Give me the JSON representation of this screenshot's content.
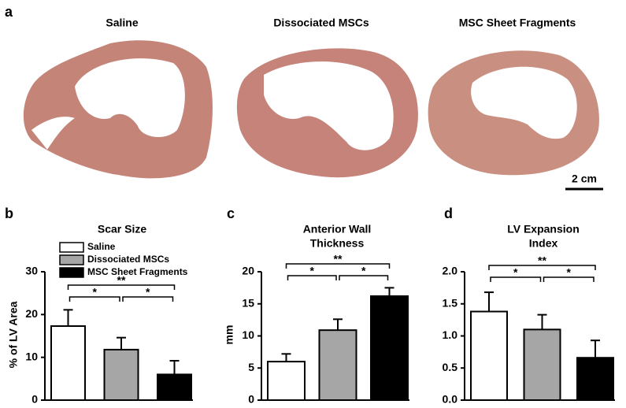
{
  "panel_a": {
    "label": "a",
    "photo_titles": [
      "Saline",
      "Dissociated MSCs",
      "MSC Sheet Fragments"
    ],
    "scale_bar": "2 cm"
  },
  "chart_data": [
    {
      "type": "bar",
      "panel_label": "b",
      "title": [
        "Scar Size"
      ],
      "ylabel": "% of LV Area",
      "categories": [
        "Saline",
        "Dissociated MSCs",
        "MSC Sheet Fragments"
      ],
      "legend": true,
      "values": [
        17.3,
        11.8,
        6.0
      ],
      "errors": [
        3.8,
        2.8,
        3.2
      ],
      "colors": [
        "#ffffff",
        "#a6a6a6",
        "#000000"
      ],
      "ylim": [
        0,
        30
      ],
      "yticks": [
        0,
        10,
        20,
        30
      ],
      "significance": [
        {
          "from": 0,
          "to": 1,
          "label": "*"
        },
        {
          "from": 1,
          "to": 2,
          "label": "*"
        },
        {
          "from": 0,
          "to": 2,
          "label": "**"
        }
      ]
    },
    {
      "type": "bar",
      "panel_label": "c",
      "title": [
        "Anterior Wall",
        "Thickness"
      ],
      "ylabel": "mm",
      "values": [
        6.0,
        10.9,
        16.2
      ],
      "errors": [
        1.2,
        1.7,
        1.3
      ],
      "colors": [
        "#ffffff",
        "#a6a6a6",
        "#000000"
      ],
      "ylim": [
        0,
        20
      ],
      "yticks": [
        0,
        5,
        10,
        15,
        20
      ],
      "significance": [
        {
          "from": 0,
          "to": 1,
          "label": "*"
        },
        {
          "from": 1,
          "to": 2,
          "label": "*"
        },
        {
          "from": 0,
          "to": 2,
          "label": "**"
        }
      ]
    },
    {
      "type": "bar",
      "panel_label": "d",
      "title": [
        "LV Expansion",
        "Index"
      ],
      "values": [
        1.38,
        1.1,
        0.66
      ],
      "errors": [
        0.3,
        0.23,
        0.27
      ],
      "colors": [
        "#ffffff",
        "#a6a6a6",
        "#000000"
      ],
      "ylim": [
        0,
        2
      ],
      "yticks": [
        {
          "value": 0,
          "label": "0.0"
        },
        {
          "value": 0.5,
          "label": "0.5"
        },
        {
          "value": 1,
          "label": "1.0"
        },
        {
          "value": 1.5,
          "label": "1.5"
        },
        {
          "value": 2,
          "label": "2.0"
        }
      ],
      "significance": [
        {
          "from": 0,
          "to": 1,
          "label": "*"
        },
        {
          "from": 1,
          "to": 2,
          "label": "*"
        },
        {
          "from": 0,
          "to": 2,
          "label": "**"
        }
      ]
    }
  ]
}
